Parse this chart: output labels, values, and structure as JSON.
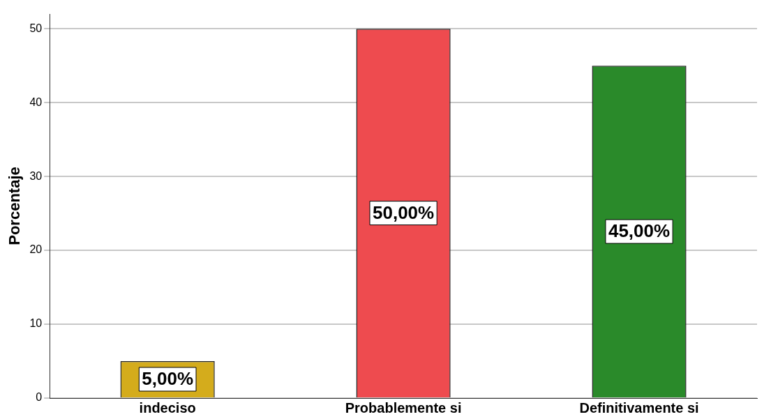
{
  "chart_data": {
    "type": "bar",
    "ylabel": "Porcentaje",
    "categories": [
      "indeciso",
      "Probablemente si",
      "Definitivamente si"
    ],
    "values": [
      5,
      50,
      45
    ],
    "colors": [
      "#d4ac1c",
      "#ee4b4f",
      "#2a8a2a"
    ],
    "value_labels": [
      "5,00%",
      "50,00%",
      "45,00%"
    ],
    "ylim": [
      0,
      52
    ],
    "yticks": [
      0,
      10,
      20,
      30,
      40,
      50
    ],
    "grid": "y",
    "legend": false
  }
}
